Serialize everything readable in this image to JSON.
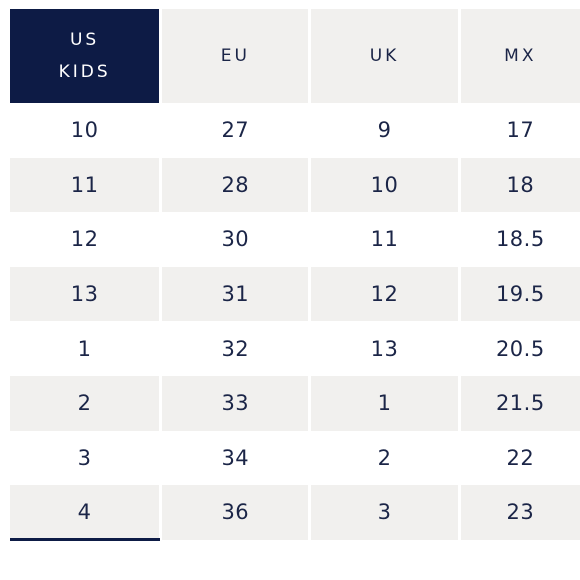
{
  "table": {
    "headers": [
      {
        "line1": "US",
        "line2": "KIDS"
      },
      {
        "line1": "EU"
      },
      {
        "line1": "UK"
      },
      {
        "line1": "MX"
      }
    ],
    "rows": [
      [
        "10",
        "27",
        "9",
        "17"
      ],
      [
        "11",
        "28",
        "10",
        "18"
      ],
      [
        "12",
        "30",
        "11",
        "18.5"
      ],
      [
        "13",
        "31",
        "12",
        "19.5"
      ],
      [
        "1",
        "32",
        "13",
        "20.5"
      ],
      [
        "2",
        "33",
        "1",
        "21.5"
      ],
      [
        "3",
        "34",
        "2",
        "22"
      ],
      [
        "4",
        "36",
        "3",
        "23"
      ]
    ]
  },
  "colors": {
    "header_active_bg": "#0d1b45",
    "stripe_bg": "#f1f0ee",
    "text": "#1b2547"
  }
}
